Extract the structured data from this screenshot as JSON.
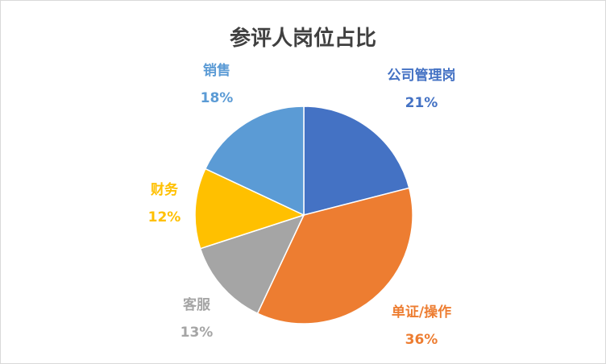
{
  "chart_data": {
    "type": "pie",
    "title": "参评人岗位占比",
    "slices": [
      {
        "name": "公司管理岗",
        "value": 21,
        "label": "21%",
        "color": "#4472c4"
      },
      {
        "name": "单证/操作",
        "value": 36,
        "label": "36%",
        "color": "#ed7d31"
      },
      {
        "name": "客服",
        "value": 13,
        "label": "13%",
        "color": "#a5a5a5"
      },
      {
        "name": "财务",
        "value": 12,
        "label": "12%",
        "color": "#ffc000"
      },
      {
        "name": "销售",
        "value": 18,
        "label": "18%",
        "color": "#5b9bd5"
      }
    ],
    "legend": "none",
    "data_labels": "outside"
  }
}
